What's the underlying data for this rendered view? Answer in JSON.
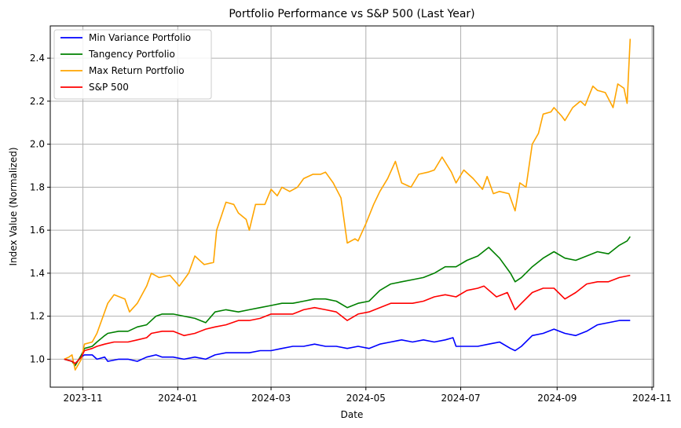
{
  "chart_data": {
    "type": "line",
    "title": "Portfolio Performance vs S&P 500 (Last Year)",
    "xlabel": "Date",
    "ylabel": "Index Value (Normalized)",
    "xlim": [
      "2023-10-11",
      "2024-11-02"
    ],
    "ylim": [
      0.87,
      2.55
    ],
    "x_ticks": [
      "2023-11-01",
      "2024-01-01",
      "2024-03-01",
      "2024-05-01",
      "2024-07-01",
      "2024-09-01",
      "2024-11-01"
    ],
    "x_tick_labels": [
      "2023-11",
      "2024-01",
      "2024-03",
      "2024-05",
      "2024-07",
      "2024-09",
      "2024-11"
    ],
    "y_ticks": [
      1.0,
      1.2,
      1.4,
      1.6,
      1.8,
      2.0,
      2.2,
      2.4
    ],
    "y_tick_labels": [
      "1.0",
      "1.2",
      "1.4",
      "1.6",
      "1.8",
      "2.0",
      "2.2",
      "2.4"
    ],
    "grid": true,
    "legend_position": "top-left",
    "series": [
      {
        "name": "Min Variance Portfolio",
        "color": "#0000ff",
        "points": [
          [
            "2023-10-20",
            1.0
          ],
          [
            "2023-10-25",
            0.99
          ],
          [
            "2023-10-27",
            0.98
          ],
          [
            "2023-10-31",
            1.01
          ],
          [
            "2023-11-02",
            1.02
          ],
          [
            "2023-11-07",
            1.02
          ],
          [
            "2023-11-10",
            1.0
          ],
          [
            "2023-11-15",
            1.01
          ],
          [
            "2023-11-17",
            0.99
          ],
          [
            "2023-11-24",
            1.0
          ],
          [
            "2023-11-30",
            1.0
          ],
          [
            "2023-12-06",
            0.99
          ],
          [
            "2023-12-12",
            1.01
          ],
          [
            "2023-12-18",
            1.02
          ],
          [
            "2023-12-22",
            1.01
          ],
          [
            "2023-12-29",
            1.01
          ],
          [
            "2024-01-05",
            1.0
          ],
          [
            "2024-01-12",
            1.01
          ],
          [
            "2024-01-19",
            1.0
          ],
          [
            "2024-01-25",
            1.02
          ],
          [
            "2024-02-01",
            1.03
          ],
          [
            "2024-02-09",
            1.03
          ],
          [
            "2024-02-16",
            1.03
          ],
          [
            "2024-02-23",
            1.04
          ],
          [
            "2024-03-01",
            1.04
          ],
          [
            "2024-03-08",
            1.05
          ],
          [
            "2024-03-15",
            1.06
          ],
          [
            "2024-03-22",
            1.06
          ],
          [
            "2024-03-29",
            1.07
          ],
          [
            "2024-04-05",
            1.06
          ],
          [
            "2024-04-12",
            1.06
          ],
          [
            "2024-04-19",
            1.05
          ],
          [
            "2024-04-26",
            1.06
          ],
          [
            "2024-05-03",
            1.05
          ],
          [
            "2024-05-10",
            1.07
          ],
          [
            "2024-05-17",
            1.08
          ],
          [
            "2024-05-24",
            1.09
          ],
          [
            "2024-05-31",
            1.08
          ],
          [
            "2024-06-07",
            1.09
          ],
          [
            "2024-06-14",
            1.08
          ],
          [
            "2024-06-21",
            1.09
          ],
          [
            "2024-06-26",
            1.1
          ],
          [
            "2024-06-28",
            1.06
          ],
          [
            "2024-07-05",
            1.06
          ],
          [
            "2024-07-12",
            1.06
          ],
          [
            "2024-07-19",
            1.07
          ],
          [
            "2024-07-26",
            1.08
          ],
          [
            "2024-08-02",
            1.05
          ],
          [
            "2024-08-05",
            1.04
          ],
          [
            "2024-08-09",
            1.06
          ],
          [
            "2024-08-16",
            1.11
          ],
          [
            "2024-08-23",
            1.12
          ],
          [
            "2024-08-30",
            1.14
          ],
          [
            "2024-09-06",
            1.12
          ],
          [
            "2024-09-13",
            1.11
          ],
          [
            "2024-09-20",
            1.13
          ],
          [
            "2024-09-27",
            1.16
          ],
          [
            "2024-10-04",
            1.17
          ],
          [
            "2024-10-11",
            1.18
          ],
          [
            "2024-10-18",
            1.18
          ]
        ]
      },
      {
        "name": "Tangency Portfolio",
        "color": "#008000",
        "points": [
          [
            "2023-10-20",
            1.0
          ],
          [
            "2023-10-25",
            0.99
          ],
          [
            "2023-10-27",
            0.97
          ],
          [
            "2023-10-31",
            1.02
          ],
          [
            "2023-11-02",
            1.05
          ],
          [
            "2023-11-07",
            1.06
          ],
          [
            "2023-11-10",
            1.08
          ],
          [
            "2023-11-15",
            1.11
          ],
          [
            "2023-11-17",
            1.12
          ],
          [
            "2023-11-24",
            1.13
          ],
          [
            "2023-11-30",
            1.13
          ],
          [
            "2023-12-06",
            1.15
          ],
          [
            "2023-12-12",
            1.16
          ],
          [
            "2023-12-18",
            1.2
          ],
          [
            "2023-12-22",
            1.21
          ],
          [
            "2023-12-29",
            1.21
          ],
          [
            "2024-01-05",
            1.2
          ],
          [
            "2024-01-12",
            1.19
          ],
          [
            "2024-01-19",
            1.17
          ],
          [
            "2024-01-25",
            1.22
          ],
          [
            "2024-02-01",
            1.23
          ],
          [
            "2024-02-09",
            1.22
          ],
          [
            "2024-02-16",
            1.23
          ],
          [
            "2024-02-23",
            1.24
          ],
          [
            "2024-03-01",
            1.25
          ],
          [
            "2024-03-08",
            1.26
          ],
          [
            "2024-03-15",
            1.26
          ],
          [
            "2024-03-22",
            1.27
          ],
          [
            "2024-03-29",
            1.28
          ],
          [
            "2024-04-05",
            1.28
          ],
          [
            "2024-04-12",
            1.27
          ],
          [
            "2024-04-19",
            1.24
          ],
          [
            "2024-04-26",
            1.26
          ],
          [
            "2024-05-03",
            1.27
          ],
          [
            "2024-05-10",
            1.32
          ],
          [
            "2024-05-17",
            1.35
          ],
          [
            "2024-05-24",
            1.36
          ],
          [
            "2024-05-31",
            1.37
          ],
          [
            "2024-06-07",
            1.38
          ],
          [
            "2024-06-14",
            1.4
          ],
          [
            "2024-06-21",
            1.43
          ],
          [
            "2024-06-28",
            1.43
          ],
          [
            "2024-07-05",
            1.46
          ],
          [
            "2024-07-12",
            1.48
          ],
          [
            "2024-07-19",
            1.52
          ],
          [
            "2024-07-26",
            1.47
          ],
          [
            "2024-08-02",
            1.4
          ],
          [
            "2024-08-05",
            1.36
          ],
          [
            "2024-08-09",
            1.38
          ],
          [
            "2024-08-16",
            1.43
          ],
          [
            "2024-08-23",
            1.47
          ],
          [
            "2024-08-30",
            1.5
          ],
          [
            "2024-09-06",
            1.47
          ],
          [
            "2024-09-13",
            1.46
          ],
          [
            "2024-09-20",
            1.48
          ],
          [
            "2024-09-27",
            1.5
          ],
          [
            "2024-10-04",
            1.49
          ],
          [
            "2024-10-11",
            1.53
          ],
          [
            "2024-10-16",
            1.55
          ],
          [
            "2024-10-18",
            1.57
          ]
        ]
      },
      {
        "name": "Max Return Portfolio",
        "color": "#ffa500",
        "points": [
          [
            "2023-10-20",
            1.0
          ],
          [
            "2023-10-23",
            1.01
          ],
          [
            "2023-10-25",
            1.02
          ],
          [
            "2023-10-27",
            0.95
          ],
          [
            "2023-10-31",
            1.0
          ],
          [
            "2023-11-02",
            1.07
          ],
          [
            "2023-11-07",
            1.08
          ],
          [
            "2023-11-10",
            1.12
          ],
          [
            "2023-11-14",
            1.2
          ],
          [
            "2023-11-17",
            1.26
          ],
          [
            "2023-11-21",
            1.3
          ],
          [
            "2023-11-28",
            1.28
          ],
          [
            "2023-12-01",
            1.22
          ],
          [
            "2023-12-06",
            1.26
          ],
          [
            "2023-12-12",
            1.34
          ],
          [
            "2023-12-15",
            1.4
          ],
          [
            "2023-12-20",
            1.38
          ],
          [
            "2023-12-27",
            1.39
          ],
          [
            "2024-01-02",
            1.34
          ],
          [
            "2024-01-08",
            1.4
          ],
          [
            "2024-01-12",
            1.48
          ],
          [
            "2024-01-18",
            1.44
          ],
          [
            "2024-01-24",
            1.45
          ],
          [
            "2024-01-26",
            1.6
          ],
          [
            "2024-02-01",
            1.73
          ],
          [
            "2024-02-06",
            1.72
          ],
          [
            "2024-02-09",
            1.68
          ],
          [
            "2024-02-14",
            1.65
          ],
          [
            "2024-02-16",
            1.6
          ],
          [
            "2024-02-20",
            1.72
          ],
          [
            "2024-02-26",
            1.72
          ],
          [
            "2024-03-01",
            1.79
          ],
          [
            "2024-03-05",
            1.76
          ],
          [
            "2024-03-08",
            1.8
          ],
          [
            "2024-03-13",
            1.78
          ],
          [
            "2024-03-18",
            1.8
          ],
          [
            "2024-03-22",
            1.84
          ],
          [
            "2024-03-28",
            1.86
          ],
          [
            "2024-04-02",
            1.86
          ],
          [
            "2024-04-05",
            1.87
          ],
          [
            "2024-04-10",
            1.82
          ],
          [
            "2024-04-15",
            1.75
          ],
          [
            "2024-04-19",
            1.54
          ],
          [
            "2024-04-24",
            1.56
          ],
          [
            "2024-04-26",
            1.55
          ],
          [
            "2024-05-01",
            1.63
          ],
          [
            "2024-05-06",
            1.72
          ],
          [
            "2024-05-10",
            1.78
          ],
          [
            "2024-05-15",
            1.84
          ],
          [
            "2024-05-20",
            1.92
          ],
          [
            "2024-05-24",
            1.82
          ],
          [
            "2024-05-30",
            1.8
          ],
          [
            "2024-06-04",
            1.86
          ],
          [
            "2024-06-10",
            1.87
          ],
          [
            "2024-06-14",
            1.88
          ],
          [
            "2024-06-19",
            1.94
          ],
          [
            "2024-06-25",
            1.87
          ],
          [
            "2024-06-28",
            1.82
          ],
          [
            "2024-07-03",
            1.88
          ],
          [
            "2024-07-09",
            1.84
          ],
          [
            "2024-07-15",
            1.79
          ],
          [
            "2024-07-18",
            1.85
          ],
          [
            "2024-07-22",
            1.77
          ],
          [
            "2024-07-26",
            1.78
          ],
          [
            "2024-08-01",
            1.77
          ],
          [
            "2024-08-05",
            1.69
          ],
          [
            "2024-08-08",
            1.82
          ],
          [
            "2024-08-12",
            1.8
          ],
          [
            "2024-08-16",
            2.0
          ],
          [
            "2024-08-20",
            2.05
          ],
          [
            "2024-08-23",
            2.14
          ],
          [
            "2024-08-28",
            2.15
          ],
          [
            "2024-08-30",
            2.17
          ],
          [
            "2024-09-04",
            2.13
          ],
          [
            "2024-09-06",
            2.11
          ],
          [
            "2024-09-11",
            2.17
          ],
          [
            "2024-09-16",
            2.2
          ],
          [
            "2024-09-19",
            2.18
          ],
          [
            "2024-09-24",
            2.27
          ],
          [
            "2024-09-27",
            2.25
          ],
          [
            "2024-10-02",
            2.24
          ],
          [
            "2024-10-07",
            2.17
          ],
          [
            "2024-10-10",
            2.28
          ],
          [
            "2024-10-14",
            2.26
          ],
          [
            "2024-10-16",
            2.19
          ],
          [
            "2024-10-18",
            2.49
          ]
        ]
      },
      {
        "name": "S&P 500",
        "color": "#ff0000",
        "points": [
          [
            "2023-10-20",
            1.0
          ],
          [
            "2023-10-25",
            0.99
          ],
          [
            "2023-10-27",
            0.98
          ],
          [
            "2023-10-31",
            1.01
          ],
          [
            "2023-11-02",
            1.04
          ],
          [
            "2023-11-07",
            1.05
          ],
          [
            "2023-11-10",
            1.06
          ],
          [
            "2023-11-15",
            1.07
          ],
          [
            "2023-11-21",
            1.08
          ],
          [
            "2023-11-30",
            1.08
          ],
          [
            "2023-12-06",
            1.09
          ],
          [
            "2023-12-12",
            1.1
          ],
          [
            "2023-12-15",
            1.12
          ],
          [
            "2023-12-22",
            1.13
          ],
          [
            "2023-12-29",
            1.13
          ],
          [
            "2024-01-05",
            1.11
          ],
          [
            "2024-01-12",
            1.12
          ],
          [
            "2024-01-19",
            1.14
          ],
          [
            "2024-01-25",
            1.15
          ],
          [
            "2024-02-01",
            1.16
          ],
          [
            "2024-02-09",
            1.18
          ],
          [
            "2024-02-16",
            1.18
          ],
          [
            "2024-02-23",
            1.19
          ],
          [
            "2024-03-01",
            1.21
          ],
          [
            "2024-03-08",
            1.21
          ],
          [
            "2024-03-15",
            1.21
          ],
          [
            "2024-03-22",
            1.23
          ],
          [
            "2024-03-29",
            1.24
          ],
          [
            "2024-04-05",
            1.23
          ],
          [
            "2024-04-12",
            1.22
          ],
          [
            "2024-04-19",
            1.18
          ],
          [
            "2024-04-26",
            1.21
          ],
          [
            "2024-05-03",
            1.22
          ],
          [
            "2024-05-10",
            1.24
          ],
          [
            "2024-05-17",
            1.26
          ],
          [
            "2024-05-24",
            1.26
          ],
          [
            "2024-05-31",
            1.26
          ],
          [
            "2024-06-07",
            1.27
          ],
          [
            "2024-06-14",
            1.29
          ],
          [
            "2024-06-21",
            1.3
          ],
          [
            "2024-06-28",
            1.29
          ],
          [
            "2024-07-05",
            1.32
          ],
          [
            "2024-07-12",
            1.33
          ],
          [
            "2024-07-16",
            1.34
          ],
          [
            "2024-07-24",
            1.29
          ],
          [
            "2024-07-31",
            1.31
          ],
          [
            "2024-08-05",
            1.23
          ],
          [
            "2024-08-09",
            1.26
          ],
          [
            "2024-08-16",
            1.31
          ],
          [
            "2024-08-23",
            1.33
          ],
          [
            "2024-08-30",
            1.33
          ],
          [
            "2024-09-06",
            1.28
          ],
          [
            "2024-09-13",
            1.31
          ],
          [
            "2024-09-20",
            1.35
          ],
          [
            "2024-09-27",
            1.36
          ],
          [
            "2024-10-04",
            1.36
          ],
          [
            "2024-10-11",
            1.38
          ],
          [
            "2024-10-18",
            1.39
          ]
        ]
      }
    ]
  }
}
